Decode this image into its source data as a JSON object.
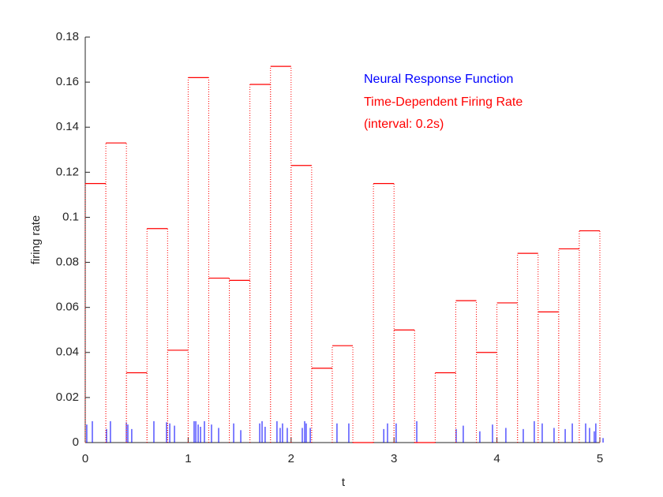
{
  "chart_data": {
    "type": "combo",
    "x_label": "t",
    "y_label": "firing rate",
    "xlim": [
      0,
      5
    ],
    "xticks": [
      0,
      1,
      2,
      3,
      4,
      5
    ],
    "ylim": [
      0,
      0.18
    ],
    "yticks": [
      0,
      0.02,
      0.04,
      0.06,
      0.08,
      0.1,
      0.12,
      0.14,
      0.16,
      0.18
    ],
    "annotation": "(interval: 0.2s)",
    "series": [
      {
        "name": "Neural Response Function",
        "type": "stem",
        "color": "#0000ff",
        "x": [
          0.015,
          0.069,
          0.207,
          0.245,
          0.399,
          0.414,
          0.452,
          0.667,
          0.79,
          0.821,
          0.867,
          1.058,
          1.074,
          1.097,
          1.12,
          1.158,
          1.227,
          1.296,
          1.442,
          1.511,
          1.695,
          1.718,
          1.748,
          1.863,
          1.894,
          1.917,
          1.963,
          2.109,
          2.132,
          2.147,
          2.186,
          2.446,
          2.561,
          2.9,
          2.937,
          3.021,
          3.221,
          3.604,
          3.673,
          3.834,
          3.957,
          4.087,
          4.256,
          4.363,
          4.44,
          4.555,
          4.663,
          4.732,
          4.862,
          4.9,
          4.946,
          4.961,
          5.031
        ],
        "values": [
          0.008,
          0.0095,
          0.006,
          0.0095,
          0.009,
          0.008,
          0.006,
          0.0095,
          0.009,
          0.0085,
          0.0075,
          0.0095,
          0.0095,
          0.008,
          0.007,
          0.0095,
          0.008,
          0.0065,
          0.0085,
          0.0055,
          0.0085,
          0.0095,
          0.007,
          0.0095,
          0.0065,
          0.0085,
          0.0065,
          0.0065,
          0.0095,
          0.0085,
          0.0065,
          0.0085,
          0.0085,
          0.006,
          0.0085,
          0.0085,
          0.0095,
          0.006,
          0.0075,
          0.005,
          0.008,
          0.0065,
          0.006,
          0.0095,
          0.0085,
          0.0065,
          0.006,
          0.0085,
          0.0085,
          0.0065,
          0.005,
          0.0085,
          0.002
        ]
      },
      {
        "name": "Time-Dependent Firing Rate",
        "type": "stairs",
        "color": "#ff0000",
        "bins": [
          0,
          0.2,
          0.4,
          0.6,
          0.8,
          1,
          1.2,
          1.4,
          1.6,
          1.8,
          2,
          2.2,
          2.4,
          2.6,
          2.8,
          3,
          3.2,
          3.4,
          3.6,
          3.8,
          4,
          4.2,
          4.4,
          4.6,
          4.8,
          5
        ],
        "values": [
          0.115,
          0.133,
          0.031,
          0.095,
          0.041,
          0.162,
          0.073,
          0.072,
          0.159,
          0.167,
          0.123,
          0.033,
          0.043,
          0,
          0.115,
          0.05,
          0,
          0.031,
          0.063,
          0.04,
          0.062,
          0.084,
          0.058,
          0.086,
          0.094
        ]
      }
    ]
  }
}
